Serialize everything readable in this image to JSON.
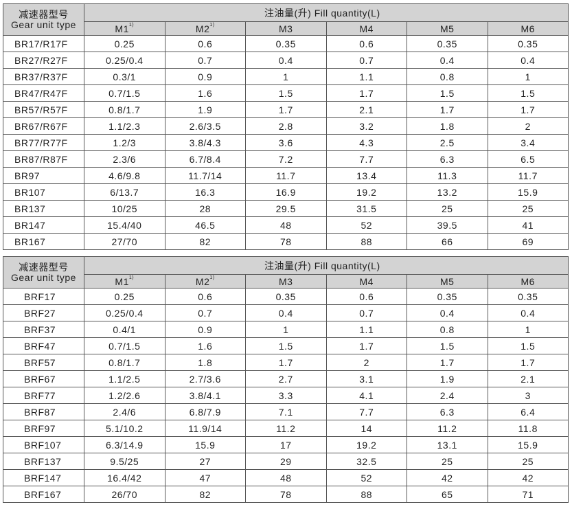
{
  "header_type_cn": "减速器型号",
  "header_type_en": "Gear unit type",
  "header_fill": "注油量(升) Fill quantity(L)",
  "columns": [
    "M1",
    "M2",
    "M3",
    "M4",
    "M5",
    "M6"
  ],
  "column_notes": [
    "1)",
    "1)",
    "",
    "",
    "",
    ""
  ],
  "table1": [
    [
      "BR17/R17F",
      "0.25",
      "0.6",
      "0.35",
      "0.6",
      "0.35",
      "0.35"
    ],
    [
      "BR27/R27F",
      "0.25/0.4",
      "0.7",
      "0.4",
      "0.7",
      "0.4",
      "0.4"
    ],
    [
      "BR37/R37F",
      "0.3/1",
      "0.9",
      "1",
      "1.1",
      "0.8",
      "1"
    ],
    [
      "BR47/R47F",
      "0.7/1.5",
      "1.6",
      "1.5",
      "1.7",
      "1.5",
      "1.5"
    ],
    [
      "BR57/R57F",
      "0.8/1.7",
      "1.9",
      "1.7",
      "2.1",
      "1.7",
      "1.7"
    ],
    [
      "BR67/R67F",
      "1.1/2.3",
      "2.6/3.5",
      "2.8",
      "3.2",
      "1.8",
      "2"
    ],
    [
      "BR77/R77F",
      "1.2/3",
      "3.8/4.3",
      "3.6",
      "4.3",
      "2.5",
      "3.4"
    ],
    [
      "BR87/R87F",
      "2.3/6",
      "6.7/8.4",
      "7.2",
      "7.7",
      "6.3",
      "6.5"
    ],
    [
      "BR97",
      "4.6/9.8",
      "11.7/14",
      "11.7",
      "13.4",
      "11.3",
      "11.7"
    ],
    [
      "BR107",
      "6/13.7",
      "16.3",
      "16.9",
      "19.2",
      "13.2",
      "15.9"
    ],
    [
      "BR137",
      "10/25",
      "28",
      "29.5",
      "31.5",
      "25",
      "25"
    ],
    [
      "BR147",
      "15.4/40",
      "46.5",
      "48",
      "52",
      "39.5",
      "41"
    ],
    [
      "BR167",
      "27/70",
      "82",
      "78",
      "88",
      "66",
      "69"
    ]
  ],
  "table2": [
    [
      "BRF17",
      "0.25",
      "0.6",
      "0.35",
      "0.6",
      "0.35",
      "0.35"
    ],
    [
      "BRF27",
      "0.25/0.4",
      "0.7",
      "0.4",
      "0.7",
      "0.4",
      "0.4"
    ],
    [
      "BRF37",
      "0.4/1",
      "0.9",
      "1",
      "1.1",
      "0.8",
      "1"
    ],
    [
      "BRF47",
      "0.7/1.5",
      "1.6",
      "1.5",
      "1.7",
      "1.5",
      "1.5"
    ],
    [
      "BRF57",
      "0.8/1.7",
      "1.8",
      "1.7",
      "2",
      "1.7",
      "1.7"
    ],
    [
      "BRF67",
      "1.1/2.5",
      "2.7/3.6",
      "2.7",
      "3.1",
      "1.9",
      "2.1"
    ],
    [
      "BRF77",
      "1.2/2.6",
      "3.8/4.1",
      "3.3",
      "4.1",
      "2.4",
      "3"
    ],
    [
      "BRF87",
      "2.4/6",
      "6.8/7.9",
      "7.1",
      "7.7",
      "6.3",
      "6.4"
    ],
    [
      "BRF97",
      "5.1/10.2",
      "11.9/14",
      "11.2",
      "14",
      "11.2",
      "11.8"
    ],
    [
      "BRF107",
      "6.3/14.9",
      "15.9",
      "17",
      "19.2",
      "13.1",
      "15.9"
    ],
    [
      "BRF137",
      "9.5/25",
      "27",
      "29",
      "32.5",
      "25",
      "25"
    ],
    [
      "BRF147",
      "16.4/42",
      "47",
      "48",
      "52",
      "42",
      "42"
    ],
    [
      "BRF167",
      "26/70",
      "82",
      "78",
      "88",
      "65",
      "71"
    ]
  ]
}
